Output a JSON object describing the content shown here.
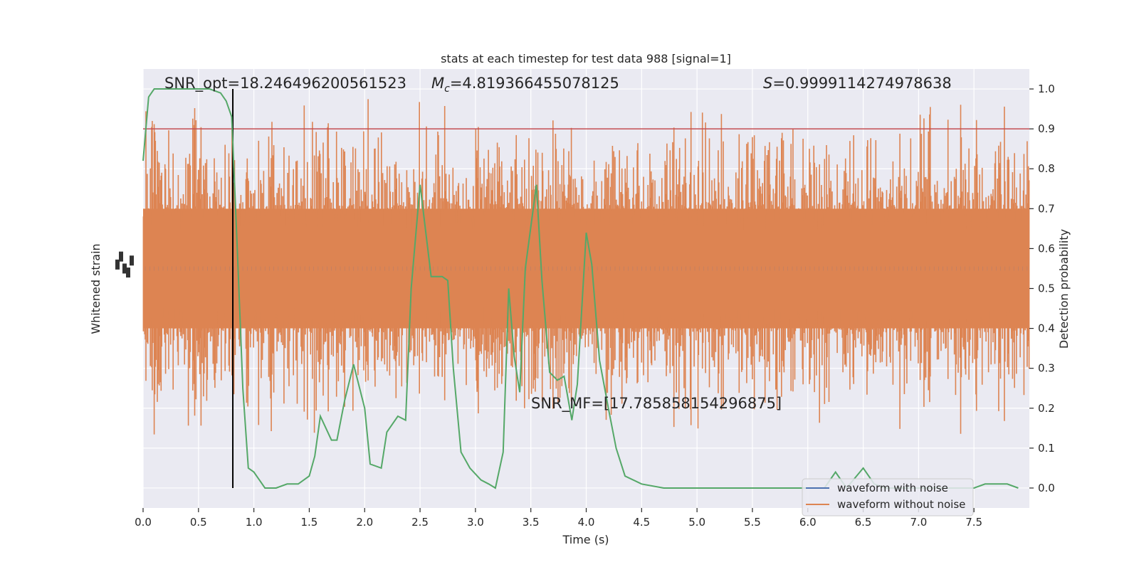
{
  "chart_data": {
    "type": "line",
    "title": "stats at each timestep for test data 988 [signal=1]",
    "xlabel": "Time (s)",
    "ylabel_left": "Whitened strain",
    "ylabel_right": "Detection probability",
    "xlim": [
      0.0,
      8.0
    ],
    "ylim_right": [
      -0.05,
      1.05
    ],
    "x_ticks": [
      "0.0",
      "0.5",
      "1.0",
      "1.5",
      "2.0",
      "2.5",
      "3.0",
      "3.5",
      "4.0",
      "4.5",
      "5.0",
      "5.5",
      "6.0",
      "6.5",
      "7.0",
      "7.5"
    ],
    "y_ticks_right": [
      "0.0",
      "0.1",
      "0.2",
      "0.3",
      "0.4",
      "0.5",
      "0.6",
      "0.7",
      "0.8",
      "0.9",
      "1.0"
    ],
    "grid": true,
    "legend_position": "lower-right",
    "annotations": {
      "snr_opt": "SNR_opt=18.246496200561523",
      "mc_prefix": "M",
      "mc_sub": "c",
      "mc_value": "=4.819366455078125",
      "s_prefix": "S",
      "s_value": "=0.9999114274978638",
      "snr_mf": "SNR_MF=[17.785858154296875]"
    },
    "threshold": {
      "y": 0.9,
      "color": "#c44e52"
    },
    "vertical_marker": {
      "x": 0.81,
      "color": "#000000"
    },
    "series": [
      {
        "name": "waveform with noise",
        "color": "#4c72b0",
        "axis": "left",
        "style": "strain"
      },
      {
        "name": "waveform without noise",
        "color": "#dd8452",
        "axis": "left",
        "style": "strain"
      },
      {
        "color": "#55a868",
        "axis": "right",
        "x": [
          0.0,
          0.05,
          0.1,
          0.2,
          0.3,
          0.4,
          0.5,
          0.6,
          0.7,
          0.75,
          0.8,
          0.85,
          0.9,
          0.95,
          1.0,
          1.05,
          1.1,
          1.15,
          1.2,
          1.3,
          1.4,
          1.5,
          1.55,
          1.6,
          1.7,
          1.75,
          1.82,
          1.9,
          2.0,
          2.05,
          2.15,
          2.2,
          2.3,
          2.37,
          2.42,
          2.5,
          2.6,
          2.7,
          2.75,
          2.8,
          2.87,
          2.95,
          3.05,
          3.12,
          3.18,
          3.25,
          3.3,
          3.35,
          3.4,
          3.45,
          3.55,
          3.6,
          3.67,
          3.74,
          3.8,
          3.87,
          3.92,
          4.0,
          4.05,
          4.12,
          4.2,
          4.27,
          4.35,
          4.5,
          4.7,
          5.0,
          5.5,
          6.0,
          6.1,
          6.15,
          6.25,
          6.35,
          6.5,
          6.6,
          6.7,
          7.0,
          7.5,
          7.6,
          7.8,
          7.9
        ],
        "y": [
          0.82,
          0.98,
          1.0,
          1.0,
          1.0,
          1.0,
          1.0,
          1.0,
          0.99,
          0.97,
          0.93,
          0.6,
          0.25,
          0.05,
          0.04,
          0.02,
          0.0,
          0.0,
          0.0,
          0.01,
          0.01,
          0.03,
          0.08,
          0.18,
          0.12,
          0.12,
          0.22,
          0.31,
          0.2,
          0.06,
          0.05,
          0.14,
          0.18,
          0.17,
          0.5,
          0.76,
          0.53,
          0.53,
          0.52,
          0.3,
          0.09,
          0.05,
          0.02,
          0.01,
          0.0,
          0.09,
          0.5,
          0.33,
          0.24,
          0.55,
          0.76,
          0.52,
          0.29,
          0.27,
          0.28,
          0.17,
          0.26,
          0.64,
          0.56,
          0.32,
          0.2,
          0.1,
          0.03,
          0.01,
          0.0,
          0.0,
          0.0,
          0.0,
          0.0,
          0.0,
          0.04,
          0.0,
          0.05,
          0.01,
          0.0,
          0.0,
          0.0,
          0.01,
          0.01,
          0.0
        ]
      }
    ]
  }
}
